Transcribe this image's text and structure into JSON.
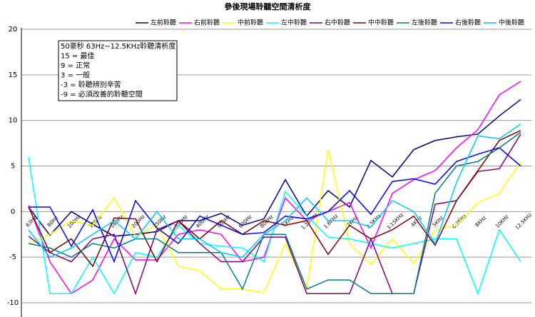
{
  "chart_data": {
    "type": "line",
    "title": "參後現場聆聽空間清析度",
    "annotation": [
      "50豪秒 63Hz~12.5KHz聆聽清析度",
      "15 = 最佳",
      "9 = 正常",
      "3 = 一般",
      "-3 = 聆聽辨別辛苦",
      "-9 = 必須改善的聆聽空間"
    ],
    "categories": [
      "63Hz",
      "80Hz",
      "100Hz",
      "125Hz",
      "160Hz",
      "200Hz",
      "250Hz",
      "315Hz",
      "400Hz",
      "500Hz",
      "630Hz",
      "800Hz",
      "1KHz",
      "1.25KHz",
      "1.6KHz",
      "2KHz",
      "2.5KHz",
      "3.15KHz",
      "4KHz",
      "5KHz",
      "6.3KHz",
      "8KHz",
      "10KHz",
      "12.5KHz"
    ],
    "ylim": [
      -10,
      20
    ],
    "yticks": [
      -10,
      -5,
      0,
      5,
      10,
      15,
      20
    ],
    "grid": true,
    "series": [
      {
        "name": "左前聆聽",
        "color": "#000080",
        "values": [
          0.5,
          -2.6,
          0,
          -1.4,
          -2.7,
          -2.5,
          -2.2,
          -1,
          -1,
          -0.2,
          -1.5,
          -0.8,
          3.5,
          -0.5,
          2.3,
          0.5,
          5.6,
          3.8,
          6.8,
          7.8,
          8.2,
          8.5,
          10.5,
          12.3
        ]
      },
      {
        "name": "右前聆聽",
        "color": "#ff00ff",
        "values": [
          0.7,
          -5.5,
          -9,
          -7.5,
          -3,
          -5.3,
          -5.3,
          -2.5,
          -2,
          -2.5,
          -5.5,
          -5,
          1.5,
          -1,
          0,
          1,
          -4,
          2,
          3.5,
          4.5,
          7,
          9,
          12.8,
          14.3
        ]
      },
      {
        "name": "中前聆聽",
        "color": "#ffff00",
        "values": [
          -3.5,
          -2.5,
          -1,
          -1.5,
          1.5,
          -2.7,
          -1.5,
          -6,
          -6.5,
          -8.5,
          -8.5,
          -8.9,
          -3.5,
          -8.5,
          6.8,
          -3.5,
          -5.8,
          -3,
          -5.7,
          -2,
          -1.5,
          1,
          2,
          5.5
        ]
      },
      {
        "name": "左中聆聽",
        "color": "#00ffff",
        "values": [
          6,
          -9,
          -9,
          -5,
          -9,
          -4.5,
          -5,
          -1.5,
          -3.5,
          -3.8,
          -4,
          -5.5,
          2.2,
          -0.5,
          -2.8,
          -3,
          -3.5,
          -4,
          -3.5,
          -3,
          -3,
          -9,
          -2,
          -5.5
        ]
      },
      {
        "name": "右中聆聽",
        "color": "#800080",
        "values": [
          -2.7,
          -4.5,
          -5.5,
          -3,
          -2.5,
          -9,
          -2,
          -1,
          -3.5,
          -5.5,
          -5.5,
          -2.8,
          -2.8,
          -9,
          -9,
          -9,
          -3,
          -9,
          -9,
          0.8,
          1.2,
          4.4,
          4.7,
          8.5
        ]
      },
      {
        "name": "中中聆聽",
        "color": "#800000",
        "values": [
          0.5,
          -4.5,
          -3,
          -6,
          -0.7,
          -0.8,
          -5.5,
          -1,
          -3,
          -1,
          -2.5,
          -1,
          -1.5,
          -1,
          -4.7,
          -1.5,
          -3,
          -2,
          -0.5,
          -3.7,
          1.2,
          4.5,
          7.8,
          8.9
        ]
      },
      {
        "name": "左後聆聽",
        "color": "#008080",
        "values": [
          -3.5,
          -4,
          -5,
          -3.5,
          -4,
          -3,
          -3,
          -4.5,
          -4.5,
          -4.5,
          -8.5,
          -2.5,
          -2.5,
          -8.5,
          -7.5,
          -7.5,
          -9,
          -9,
          -9,
          2,
          5,
          5.5,
          7,
          8.7
        ]
      },
      {
        "name": "右後聆聽",
        "color": "#0000ff",
        "values": [
          0.5,
          0.5,
          -3.8,
          0.2,
          -5.5,
          1.2,
          -1.8,
          -3.5,
          -0.5,
          -1.5,
          -2.5,
          -2.3,
          -0.5,
          -0.8,
          0,
          2.3,
          -0.3,
          3.3,
          3.6,
          3,
          5.5,
          6.3,
          7,
          5
        ]
      },
      {
        "name": "中後聆聽",
        "color": "#00ccff",
        "values": [
          -2,
          -5,
          -4,
          -2.5,
          -1,
          -3,
          0,
          -3,
          -3,
          -4.5,
          -5,
          -2.5,
          -1,
          1.5,
          -1,
          -1,
          -1.7,
          1.2,
          0,
          -3.5,
          3.2,
          8.3,
          8,
          9.6
        ]
      }
    ]
  }
}
